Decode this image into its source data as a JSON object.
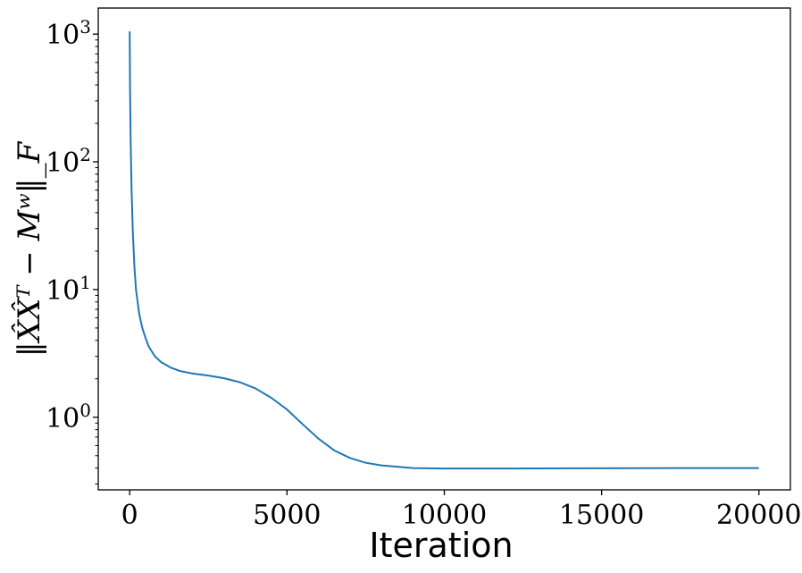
{
  "chart_data": {
    "type": "line",
    "xlabel": "Iteration",
    "ylabel": "‖X̂X̂ᵀ − Mʷ‖_F",
    "xscale": "linear",
    "yscale": "log",
    "xlim": [
      -1000,
      21000
    ],
    "ylim": [
      0.27,
      1600
    ],
    "grid": false,
    "line_color": "#1f77b4",
    "x_ticks": [
      0,
      5000,
      10000,
      15000,
      20000
    ],
    "x_tick_labels": [
      "0",
      "5000",
      "10000",
      "15000",
      "20000"
    ],
    "y_ticks": [
      1,
      10,
      100,
      1000
    ],
    "y_tick_labels": [
      {
        "base": "10",
        "exp": "0"
      },
      {
        "base": "10",
        "exp": "1"
      },
      {
        "base": "10",
        "exp": "2"
      },
      {
        "base": "10",
        "exp": "3"
      }
    ],
    "series": [
      {
        "x": [
          0,
          10,
          30,
          60,
          100,
          150,
          200,
          300,
          400,
          500,
          600,
          800,
          1000,
          1300,
          1600,
          2000,
          2500,
          3000,
          3500,
          4000,
          4500,
          5000,
          5500,
          6000,
          6500,
          7000,
          7500,
          8000,
          8500,
          9000,
          9500,
          10000,
          11000,
          12000,
          14000,
          16000,
          18000,
          20000
        ],
        "y": [
          1050,
          400,
          150,
          60,
          28,
          15,
          10,
          6.5,
          5,
          4.2,
          3.6,
          3.0,
          2.7,
          2.45,
          2.3,
          2.2,
          2.12,
          2.02,
          1.88,
          1.68,
          1.42,
          1.15,
          0.88,
          0.68,
          0.55,
          0.48,
          0.44,
          0.42,
          0.41,
          0.4,
          0.398,
          0.397,
          0.397,
          0.397,
          0.398,
          0.399,
          0.4,
          0.4
        ]
      }
    ]
  }
}
